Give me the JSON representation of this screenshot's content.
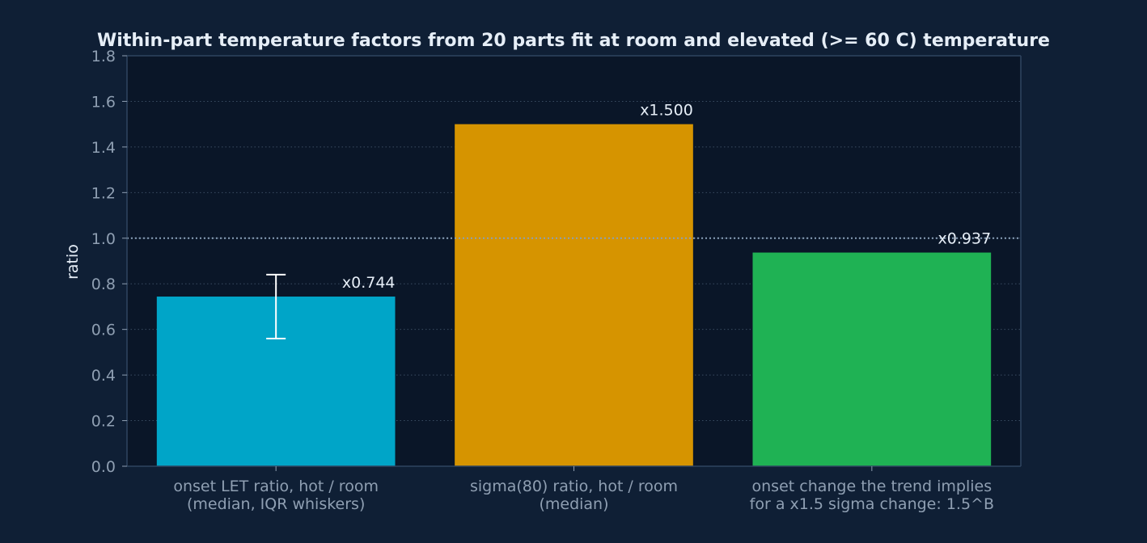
{
  "chart_data": {
    "type": "bar",
    "title": "Within-part temperature factors from 20 parts fit at room and elevated (>= 60 C) temperature",
    "xlabel": "",
    "ylabel": "ratio",
    "ylim": [
      0,
      1.8
    ],
    "yticks": [
      "0.0",
      "0.2",
      "0.4",
      "0.6",
      "0.8",
      "1.0",
      "1.2",
      "1.4",
      "1.6",
      "1.8"
    ],
    "grid": true,
    "reference_line": 1.0,
    "categories": [
      [
        "onset LET ratio, hot / room",
        "(median, IQR whiskers)"
      ],
      [
        "sigma(80) ratio, hot / room",
        "(median)"
      ],
      [
        "onset change the trend implies",
        "for a x1.5 sigma change: 1.5^B"
      ]
    ],
    "values": [
      0.744,
      1.5,
      0.937
    ],
    "value_labels": [
      "x0.744",
      "x1.500",
      "x0.937"
    ],
    "error_bars": [
      {
        "low": 0.56,
        "high": 0.84
      },
      null,
      null
    ],
    "colors": {
      "background": "#0f1f35",
      "plot_background": "#0a1628",
      "bars": [
        "#00a5c8",
        "#d69400",
        "#1fb254"
      ],
      "axis": "#2f4560",
      "grid": "#3a4c62",
      "reference_line": "#8aa0b8",
      "title_text": "#e6eef7",
      "tick_text": "#8f9fb2",
      "label_text": "#e6eef7"
    }
  }
}
